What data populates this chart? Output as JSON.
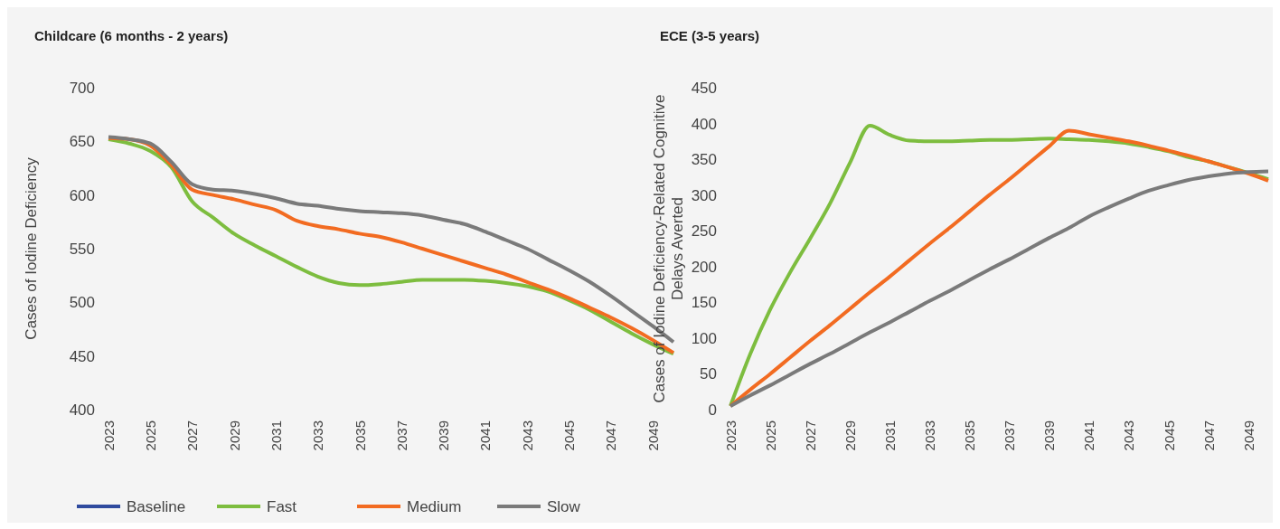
{
  "chart_data": [
    {
      "type": "line",
      "title": "Childcare (6 months - 2 years)",
      "ylabel": "Cases of Iodine Deficiency",
      "categories": [
        "2023",
        null,
        "2025",
        null,
        "2027",
        null,
        "2029",
        null,
        "2031",
        null,
        "2033",
        null,
        "2035",
        null,
        "2037",
        null,
        "2039",
        null,
        "2041",
        null,
        "2043",
        null,
        "2045",
        null,
        "2047",
        null,
        "2049",
        null
      ],
      "ylim": [
        400,
        700
      ],
      "yticks": [
        400,
        450,
        500,
        550,
        600,
        650,
        700
      ],
      "grid": false,
      "legend": "bottom",
      "line_style": "solid",
      "marker": "none",
      "series": [
        {
          "name": "Baseline",
          "color": "#2f4b9e",
          "values": [
            null,
            null,
            null,
            null,
            null,
            null,
            null,
            null,
            null,
            null,
            null,
            null,
            null,
            null,
            null,
            null,
            null,
            null,
            null,
            null,
            null,
            null,
            null,
            null,
            null,
            null,
            null,
            null
          ]
        },
        {
          "name": "Fast",
          "color": "#7dbd3f",
          "values": [
            652,
            648,
            641,
            626,
            594,
            579,
            564,
            553,
            543,
            533,
            524,
            518,
            516,
            517,
            519,
            521,
            521,
            521,
            520,
            518,
            515,
            510,
            502,
            493,
            482,
            471,
            461,
            452
          ]
        },
        {
          "name": "Medium",
          "color": "#f26b21",
          "values": [
            653,
            652,
            646,
            628,
            605,
            600,
            596,
            591,
            586,
            576,
            571,
            568,
            564,
            561,
            556,
            550,
            544,
            538,
            532,
            526,
            519,
            512,
            504,
            495,
            486,
            476,
            465,
            453
          ]
        },
        {
          "name": "Slow",
          "color": "#7a7a7a",
          "values": [
            654,
            652,
            648,
            631,
            610,
            605,
            604,
            601,
            597,
            592,
            590,
            587,
            585,
            584,
            583,
            581,
            577,
            573,
            566,
            558,
            550,
            540,
            530,
            519,
            506,
            492,
            478,
            463
          ]
        }
      ]
    },
    {
      "type": "line",
      "title": "ECE (3-5 years)",
      "ylabel": "Cases of Iodine Deficiency-Related Cognitive Delays Averted",
      "categories": [
        "2023",
        null,
        "2025",
        null,
        "2027",
        null,
        "2029",
        null,
        "2031",
        null,
        "2033",
        null,
        "2035",
        null,
        "2037",
        null,
        "2039",
        null,
        "2041",
        null,
        "2043",
        null,
        "2045",
        null,
        "2047",
        null,
        "2049",
        null
      ],
      "ylim": [
        0,
        450
      ],
      "yticks": [
        0,
        50,
        100,
        150,
        200,
        250,
        300,
        350,
        400,
        450
      ],
      "grid": false,
      "legend": false,
      "line_style": "solid",
      "marker": "none",
      "series": [
        {
          "color": "#7dbd3f",
          "values": [
            5,
            78,
            140,
            192,
            239,
            288,
            345,
            397,
            384,
            376,
            375,
            375,
            376,
            377,
            377,
            378,
            379,
            378,
            377,
            375,
            372,
            367,
            361,
            353,
            347,
            339,
            331,
            322
          ]
        },
        {
          "color": "#f26b21",
          "values": [
            5,
            28,
            50,
            73,
            96,
            118,
            141,
            164,
            186,
            209,
            232,
            254,
            277,
            300,
            322,
            345,
            368,
            390,
            385,
            380,
            375,
            369,
            362,
            355,
            347,
            339,
            330,
            320
          ]
        },
        {
          "color": "#7a7a7a",
          "values": [
            5,
            20,
            34,
            49,
            64,
            78,
            93,
            108,
            122,
            137,
            152,
            166,
            181,
            196,
            210,
            225,
            240,
            254,
            270,
            283,
            295,
            306,
            314,
            321,
            326,
            330,
            332,
            333
          ]
        }
      ]
    }
  ]
}
